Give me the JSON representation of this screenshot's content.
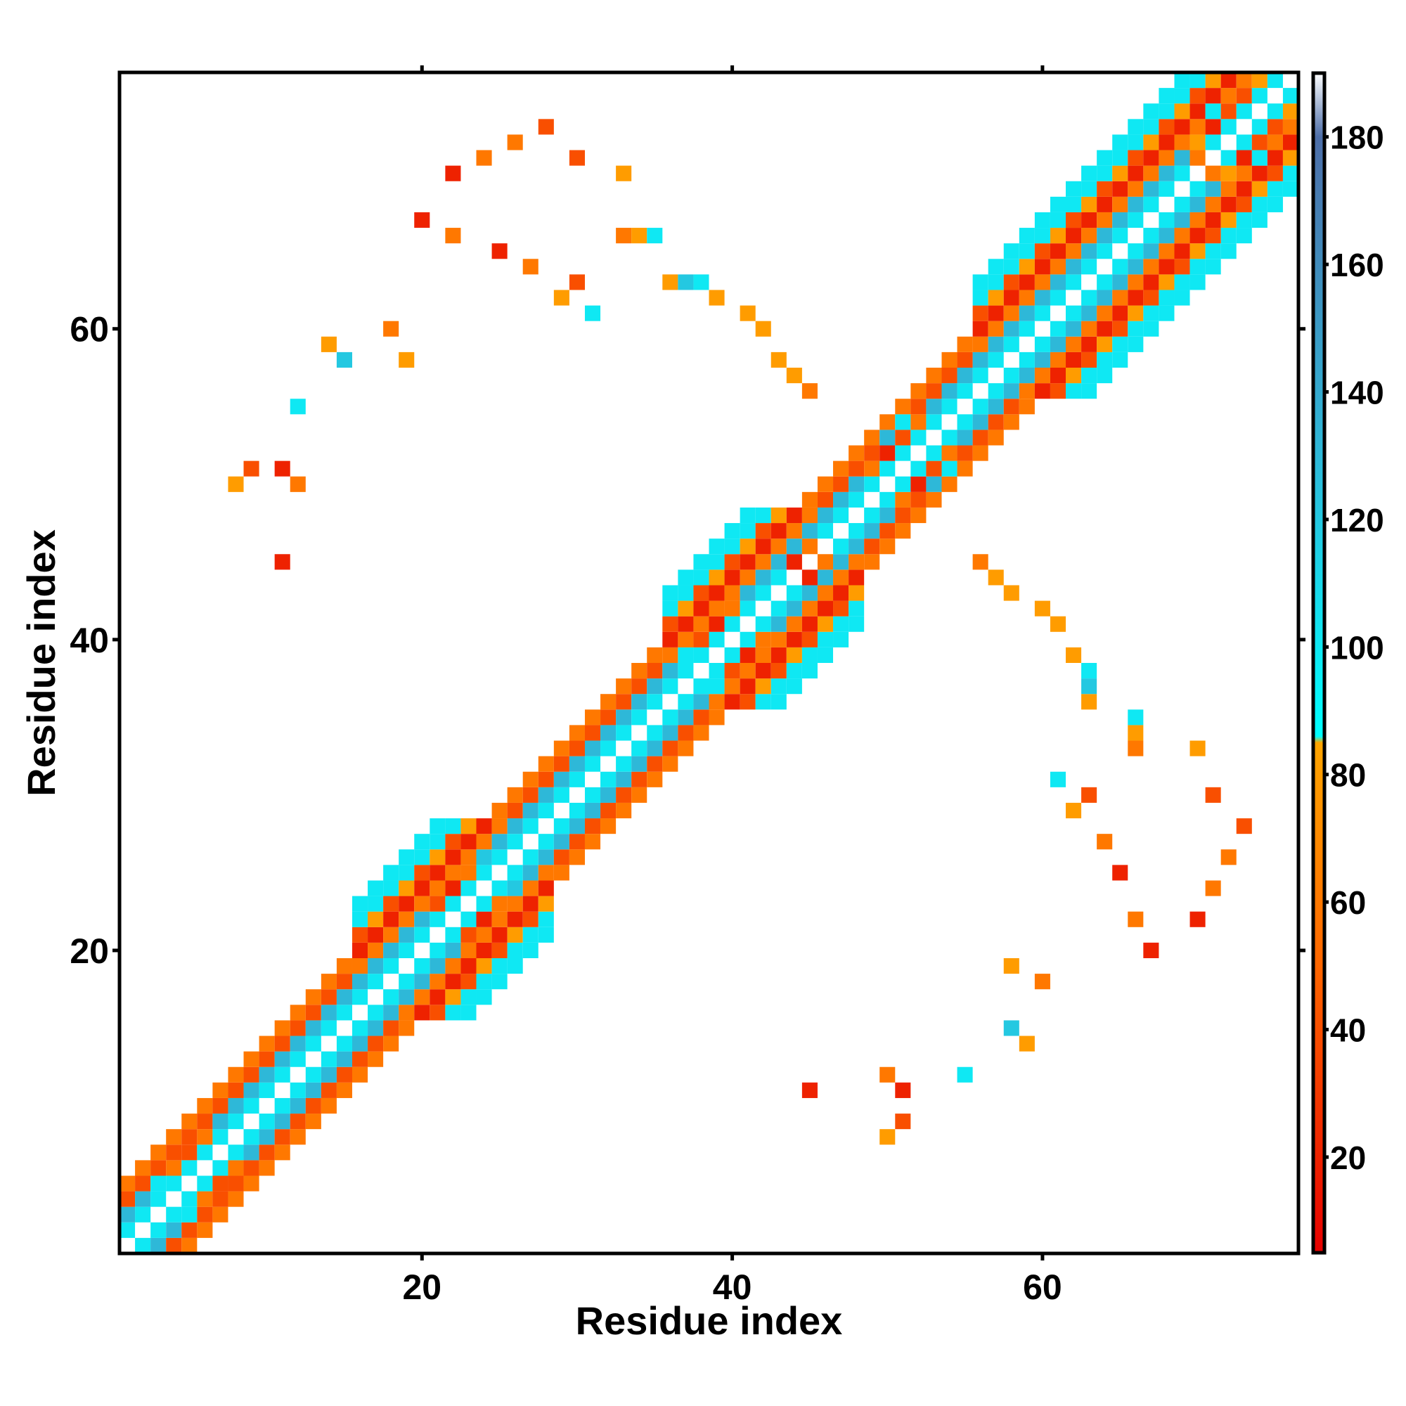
{
  "chart_data": {
    "type": "heatmap",
    "title": "",
    "xlabel": "Residue index",
    "ylabel": "Residue index",
    "xlim": [
      0.5,
      76.5
    ],
    "ylim": [
      0.5,
      76.5
    ],
    "x_ticks": [
      20,
      40,
      60
    ],
    "y_ticks": [
      20,
      40,
      60
    ],
    "x_tick_labels": [
      "20",
      "40",
      "60"
    ],
    "y_tick_labels": [
      "20",
      "40",
      "60"
    ],
    "grid": false,
    "colorbar": {
      "placement": "right",
      "range": [
        5,
        190
      ],
      "ticks": [
        20,
        40,
        60,
        80,
        100,
        120,
        140,
        160,
        180
      ],
      "tick_labels": [
        "20",
        "40",
        "60",
        "80",
        "100",
        "120",
        "140",
        "160",
        "180"
      ],
      "stops": [
        {
          "value": 5,
          "color": "#e60000"
        },
        {
          "value": 50,
          "color": "#ff6600"
        },
        {
          "value": 85,
          "color": "#ffa500"
        },
        {
          "value": 86,
          "color": "#00ffff"
        },
        {
          "value": 130,
          "color": "#2eb8d8"
        },
        {
          "value": 180,
          "color": "#4d6ea8"
        },
        {
          "value": 190,
          "color": "#ffffff"
        }
      ]
    },
    "cells_note": "Each cell is [x residue, y residue, value].",
    "cells": [
      [
        70,
        72,
        80
      ],
      [
        72,
        70,
        80
      ],
      [
        74,
        76,
        80
      ],
      [
        76,
        74,
        80
      ],
      [
        73,
        75,
        40
      ],
      [
        75,
        73,
        40
      ],
      [
        72,
        74,
        40
      ],
      [
        74,
        72,
        40
      ],
      [
        71,
        73,
        20
      ],
      [
        73,
        71,
        20
      ],
      [
        70,
        71,
        60
      ],
      [
        71,
        70,
        60
      ],
      [
        71,
        74,
        100
      ],
      [
        74,
        71,
        100
      ],
      [
        72,
        73,
        100
      ],
      [
        73,
        72,
        100
      ],
      [
        74,
        75,
        100
      ],
      [
        75,
        74,
        100
      ],
      [
        49,
        51,
        60
      ],
      [
        51,
        49,
        60
      ],
      [
        50,
        52,
        20
      ],
      [
        52,
        50,
        20
      ],
      [
        51,
        53,
        40
      ],
      [
        53,
        51,
        40
      ],
      [
        52,
        54,
        60
      ],
      [
        54,
        52,
        60
      ],
      [
        50,
        53,
        130
      ],
      [
        53,
        50,
        130
      ],
      [
        51,
        54,
        100
      ],
      [
        54,
        51,
        100
      ],
      [
        4,
        6,
        60
      ],
      [
        6,
        4,
        60
      ],
      [
        5,
        7,
        40
      ],
      [
        7,
        5,
        40
      ],
      [
        6,
        8,
        60
      ],
      [
        8,
        6,
        60
      ],
      [
        3,
        5,
        100
      ],
      [
        5,
        3,
        100
      ],
      [
        4,
        5,
        100
      ],
      [
        5,
        4,
        100
      ],
      [
        26,
        24,
        120
      ],
      [
        27,
        25,
        130
      ],
      [
        24,
        26,
        120
      ],
      [
        25,
        27,
        130
      ],
      [
        23,
        25,
        60
      ],
      [
        25,
        23,
        60
      ],
      [
        22,
        24,
        20
      ],
      [
        24,
        22,
        20
      ],
      [
        21,
        23,
        40
      ],
      [
        23,
        21,
        40
      ],
      [
        40,
        42,
        60
      ],
      [
        42,
        40,
        60
      ],
      [
        39,
        41,
        20
      ],
      [
        41,
        39,
        20
      ],
      [
        38,
        40,
        40
      ],
      [
        40,
        38,
        40
      ],
      [
        37,
        39,
        100
      ],
      [
        39,
        37,
        100
      ],
      [
        45,
        46,
        60
      ],
      [
        46,
        45,
        60
      ],
      [
        44,
        45,
        20
      ],
      [
        45,
        44,
        20
      ],
      [
        46,
        48,
        130
      ],
      [
        48,
        46,
        130
      ],
      [
        22,
        70,
        20
      ],
      [
        24,
        71,
        60
      ],
      [
        26,
        72,
        60
      ],
      [
        28,
        73,
        40
      ],
      [
        30,
        71,
        40
      ],
      [
        33,
        70,
        80
      ],
      [
        33,
        66,
        60
      ],
      [
        34,
        66,
        80
      ],
      [
        35,
        66,
        100
      ],
      [
        36,
        63,
        80
      ],
      [
        37,
        63,
        120
      ],
      [
        38,
        63,
        100
      ],
      [
        39,
        62,
        80
      ],
      [
        41,
        61,
        80
      ],
      [
        42,
        60,
        80
      ],
      [
        43,
        58,
        80
      ],
      [
        44,
        57,
        80
      ],
      [
        45,
        56,
        60
      ],
      [
        20,
        67,
        20
      ],
      [
        22,
        66,
        60
      ],
      [
        25,
        65,
        20
      ],
      [
        27,
        64,
        60
      ],
      [
        29,
        62,
        80
      ],
      [
        30,
        63,
        40
      ],
      [
        31,
        61,
        100
      ],
      [
        18,
        60,
        60
      ],
      [
        15,
        58,
        120
      ],
      [
        19,
        58,
        80
      ],
      [
        14,
        59,
        80
      ],
      [
        12,
        55,
        100
      ],
      [
        8,
        50,
        80
      ],
      [
        9,
        51,
        40
      ],
      [
        11,
        51,
        20
      ],
      [
        12,
        50,
        60
      ],
      [
        11,
        45,
        20
      ],
      [
        70,
        22,
        20
      ],
      [
        71,
        24,
        60
      ],
      [
        72,
        26,
        60
      ],
      [
        73,
        28,
        40
      ],
      [
        71,
        30,
        40
      ],
      [
        70,
        33,
        80
      ],
      [
        66,
        33,
        60
      ],
      [
        66,
        34,
        80
      ],
      [
        66,
        35,
        100
      ],
      [
        63,
        36,
        80
      ],
      [
        63,
        37,
        120
      ],
      [
        63,
        38,
        100
      ],
      [
        62,
        39,
        80
      ],
      [
        61,
        41,
        80
      ],
      [
        60,
        42,
        80
      ],
      [
        58,
        43,
        80
      ],
      [
        57,
        44,
        80
      ],
      [
        56,
        45,
        60
      ],
      [
        67,
        20,
        20
      ],
      [
        66,
        22,
        60
      ],
      [
        65,
        25,
        20
      ],
      [
        64,
        27,
        60
      ],
      [
        62,
        29,
        80
      ],
      [
        63,
        30,
        40
      ],
      [
        61,
        31,
        100
      ],
      [
        60,
        18,
        60
      ],
      [
        58,
        15,
        120
      ],
      [
        58,
        19,
        80
      ],
      [
        59,
        14,
        80
      ],
      [
        55,
        12,
        100
      ],
      [
        50,
        8,
        80
      ],
      [
        51,
        9,
        40
      ],
      [
        51,
        11,
        20
      ],
      [
        50,
        12,
        60
      ],
      [
        45,
        11,
        20
      ]
    ]
  }
}
